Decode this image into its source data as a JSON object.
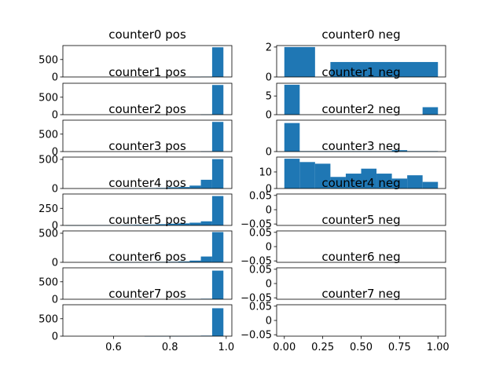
{
  "figure": {
    "bar_color": "#1f77b4",
    "rows": 8,
    "cols": 2
  },
  "chart_data": [
    {
      "type": "bar",
      "title": "counter0 pos",
      "xlim": [
        0.42,
        1.02
      ],
      "ylim": [
        0,
        900
      ],
      "yticks": [
        0,
        500
      ],
      "xticks": [],
      "bins": [
        [
          0.95,
          0.99,
          850
        ],
        [
          0.91,
          0.95,
          10
        ],
        [
          0.87,
          0.91,
          5
        ]
      ]
    },
    {
      "type": "bar",
      "title": "counter0 neg",
      "xlim": [
        -0.05,
        1.05
      ],
      "ylim": [
        0,
        2.1
      ],
      "yticks": [
        0,
        2
      ],
      "xticks": [],
      "bins": [
        [
          0.0,
          0.2,
          2
        ],
        [
          0.3,
          1.0,
          1
        ]
      ]
    },
    {
      "type": "bar",
      "title": "counter1 pos",
      "xlim": [
        0.42,
        1.02
      ],
      "ylim": [
        0,
        900
      ],
      "yticks": [
        0,
        500
      ],
      "xticks": [],
      "bins": [
        [
          0.95,
          0.99,
          850
        ],
        [
          0.91,
          0.95,
          8
        ]
      ]
    },
    {
      "type": "bar",
      "title": "counter1 neg",
      "xlim": [
        -0.05,
        1.05
      ],
      "ylim": [
        0,
        8.4
      ],
      "yticks": [
        0,
        5
      ],
      "xticks": [],
      "bins": [
        [
          0.0,
          0.1,
          8
        ],
        [
          0.9,
          1.0,
          2
        ]
      ]
    },
    {
      "type": "bar",
      "title": "counter2 pos",
      "xlim": [
        0.42,
        1.02
      ],
      "ylim": [
        0,
        900
      ],
      "yticks": [
        0,
        500
      ],
      "xticks": [],
      "bins": [
        [
          0.95,
          0.99,
          850
        ],
        [
          0.91,
          0.95,
          10
        ]
      ]
    },
    {
      "type": "bar",
      "title": "counter2 neg",
      "xlim": [
        -0.05,
        1.05
      ],
      "ylim": [
        0,
        66
      ],
      "yticks": [
        0
      ],
      "xticks": [],
      "bins": [
        [
          0.0,
          0.1,
          60
        ],
        [
          0.1,
          0.7,
          1
        ],
        [
          0.7,
          0.8,
          3
        ],
        [
          0.8,
          1.0,
          1
        ]
      ]
    },
    {
      "type": "bar",
      "title": "counter3 pos",
      "xlim": [
        0.42,
        1.02
      ],
      "ylim": [
        0,
        540
      ],
      "yticks": [
        0,
        500
      ],
      "xticks": [],
      "bins": [
        [
          0.95,
          0.99,
          505
        ],
        [
          0.91,
          0.95,
          150
        ],
        [
          0.87,
          0.91,
          50
        ],
        [
          0.83,
          0.87,
          25
        ],
        [
          0.79,
          0.83,
          20
        ],
        [
          0.75,
          0.79,
          10
        ],
        [
          0.71,
          0.75,
          8
        ],
        [
          0.67,
          0.71,
          5
        ],
        [
          0.63,
          0.67,
          3
        ]
      ]
    },
    {
      "type": "bar",
      "title": "counter3 neg",
      "xlim": [
        -0.05,
        1.05
      ],
      "ylim": [
        0,
        19
      ],
      "yticks": [
        0,
        10
      ],
      "xticks": [],
      "bins": [
        [
          0.0,
          0.1,
          18
        ],
        [
          0.1,
          0.2,
          16
        ],
        [
          0.2,
          0.3,
          15
        ],
        [
          0.3,
          0.4,
          7
        ],
        [
          0.4,
          0.5,
          9
        ],
        [
          0.5,
          0.6,
          12
        ],
        [
          0.6,
          0.7,
          9
        ],
        [
          0.7,
          0.8,
          6
        ],
        [
          0.8,
          0.9,
          8
        ],
        [
          0.9,
          1.0,
          4
        ]
      ]
    },
    {
      "type": "bar",
      "title": "counter4 pos",
      "xlim": [
        0.42,
        1.02
      ],
      "ylim": [
        0,
        460
      ],
      "yticks": [
        0,
        250
      ],
      "xticks": [],
      "bins": [
        [
          0.95,
          0.99,
          430
        ],
        [
          0.91,
          0.95,
          60
        ],
        [
          0.87,
          0.91,
          40
        ],
        [
          0.83,
          0.87,
          30
        ],
        [
          0.79,
          0.83,
          25
        ],
        [
          0.75,
          0.79,
          18
        ],
        [
          0.71,
          0.75,
          12
        ],
        [
          0.67,
          0.71,
          10
        ],
        [
          0.63,
          0.67,
          8
        ],
        [
          0.59,
          0.63,
          6
        ],
        [
          0.55,
          0.59,
          4
        ],
        [
          0.51,
          0.55,
          3
        ],
        [
          0.47,
          0.51,
          2
        ],
        [
          0.43,
          0.47,
          2
        ]
      ]
    },
    {
      "type": "bar",
      "title": "counter4 neg",
      "xlim": [
        -0.05,
        1.05
      ],
      "ylim": [
        -0.055,
        0.055
      ],
      "yticks": [
        0.05,
        0.0,
        -0.05
      ],
      "xticks": [],
      "bins": []
    },
    {
      "type": "bar",
      "title": "counter5 pos",
      "xlim": [
        0.42,
        1.02
      ],
      "ylim": [
        0,
        540
      ],
      "yticks": [
        0,
        500
      ],
      "xticks": [],
      "bins": [
        [
          0.95,
          0.99,
          520
        ],
        [
          0.91,
          0.95,
          100
        ],
        [
          0.87,
          0.91,
          30
        ],
        [
          0.83,
          0.87,
          15
        ],
        [
          0.79,
          0.83,
          10
        ],
        [
          0.75,
          0.79,
          8
        ],
        [
          0.71,
          0.75,
          5
        ],
        [
          0.67,
          0.71,
          4
        ],
        [
          0.63,
          0.67,
          3
        ],
        [
          0.59,
          0.63,
          2
        ]
      ]
    },
    {
      "type": "bar",
      "title": "counter5 neg",
      "xlim": [
        -0.05,
        1.05
      ],
      "ylim": [
        -0.055,
        0.055
      ],
      "yticks": [
        0.05,
        0.0,
        -0.05
      ],
      "xticks": [],
      "bins": []
    },
    {
      "type": "bar",
      "title": "counter6 pos",
      "xlim": [
        0.42,
        1.02
      ],
      "ylim": [
        0,
        900
      ],
      "yticks": [
        0,
        500
      ],
      "xticks": [],
      "bins": [
        [
          0.95,
          0.99,
          820
        ],
        [
          0.91,
          0.95,
          15
        ],
        [
          0.87,
          0.91,
          8
        ],
        [
          0.83,
          0.87,
          4
        ]
      ]
    },
    {
      "type": "bar",
      "title": "counter6 neg",
      "xlim": [
        -0.05,
        1.05
      ],
      "ylim": [
        -0.055,
        0.055
      ],
      "yticks": [
        0.05,
        0.0,
        -0.05
      ],
      "xticks": [],
      "bins": []
    },
    {
      "type": "bar",
      "title": "counter7 pos",
      "xlim": [
        0.42,
        1.02
      ],
      "ylim": [
        0,
        900
      ],
      "yticks": [
        0,
        500
      ],
      "xticks": [
        0.6,
        0.8,
        1.0
      ],
      "bins": [
        [
          0.95,
          0.99,
          800
        ],
        [
          0.91,
          0.95,
          15
        ],
        [
          0.87,
          0.91,
          10
        ],
        [
          0.83,
          0.87,
          5
        ],
        [
          0.79,
          0.83,
          4
        ],
        [
          0.75,
          0.79,
          3
        ],
        [
          0.71,
          0.75,
          2
        ]
      ]
    },
    {
      "type": "bar",
      "title": "counter7 neg",
      "xlim": [
        -0.05,
        1.05
      ],
      "ylim": [
        -0.055,
        0.055
      ],
      "yticks": [
        0.05,
        0.0,
        -0.05
      ],
      "xticks": [
        0.0,
        0.25,
        0.5,
        0.75,
        1.0
      ],
      "bins": []
    }
  ]
}
